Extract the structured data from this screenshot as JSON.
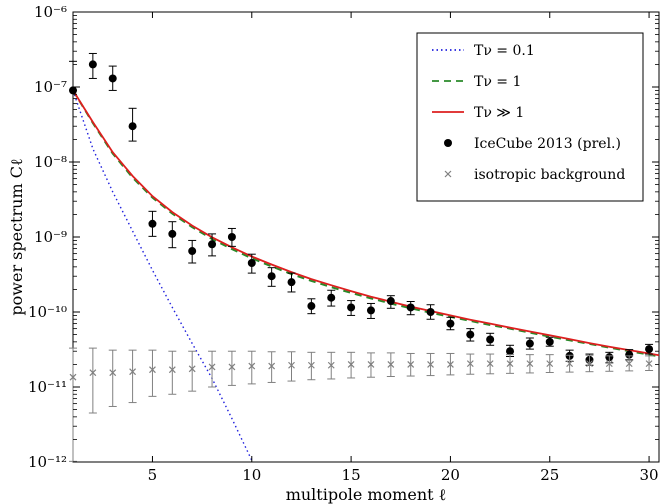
{
  "chart_data": {
    "type": "scatter",
    "xlabel": "multipole moment ℓ",
    "ylabel": "power spectrum Cℓ",
    "xlim": [
      1,
      30.5
    ],
    "ylim": [
      1e-12,
      1e-06
    ],
    "yscale": "log",
    "grid": false,
    "legend_position": "top-right",
    "x_ticks": [
      5,
      10,
      15,
      20,
      25,
      30
    ],
    "y_ticks": [
      {
        "value": 1e-12,
        "label": "10⁻¹²"
      },
      {
        "value": 1e-11,
        "label": "10⁻¹¹"
      },
      {
        "value": 1e-10,
        "label": "10⁻¹⁰"
      },
      {
        "value": 1e-09,
        "label": "10⁻⁹"
      },
      {
        "value": 1e-08,
        "label": "10⁻⁸"
      },
      {
        "value": 1e-07,
        "label": "10⁻⁷"
      },
      {
        "value": 1e-06,
        "label": "10⁻⁶"
      }
    ],
    "series": [
      {
        "name": "Tν = 0.1",
        "kind": "line",
        "style": "dotted",
        "color": "#1f1fdd",
        "x": [
          1,
          2,
          3,
          4,
          5,
          6,
          7,
          8,
          9,
          10
        ],
        "y": [
          9e-08,
          1.5e-08,
          4e-09,
          1.2e-09,
          3.6e-10,
          1.15e-10,
          3.8e-11,
          1.3e-11,
          3.8e-12,
          1.05e-12
        ]
      },
      {
        "name": "Tν = 1",
        "kind": "line",
        "style": "dashed",
        "color": "#2a8a2a",
        "x": [
          1,
          2,
          3,
          4,
          5,
          6,
          7,
          8,
          9,
          10,
          11,
          12,
          13,
          14,
          15,
          16,
          17,
          18,
          19,
          20,
          21,
          22,
          23,
          24,
          25,
          26,
          27,
          28,
          29,
          30,
          30.5
        ],
        "y": [
          9e-08,
          3.3e-08,
          1.3e-08,
          6.2e-09,
          3.35e-09,
          2.05e-09,
          1.35e-09,
          9.4e-10,
          6.9e-10,
          5.2e-10,
          4.05e-10,
          3.2e-10,
          2.6e-10,
          2.15e-10,
          1.8e-10,
          1.52e-10,
          1.3e-10,
          1.12e-10,
          9.8e-11,
          8.6e-11,
          7.6e-11,
          6.7e-11,
          6e-11,
          5.3e-11,
          4.7e-11,
          4.2e-11,
          3.75e-11,
          3.35e-11,
          3e-11,
          2.7e-11,
          2.55e-11
        ]
      },
      {
        "name": "Tν ≫ 1",
        "kind": "line",
        "style": "solid",
        "color": "#dd1f1f",
        "x": [
          1,
          2,
          3,
          4,
          5,
          6,
          7,
          8,
          9,
          10,
          11,
          12,
          13,
          14,
          15,
          16,
          17,
          18,
          19,
          20,
          21,
          22,
          23,
          24,
          25,
          26,
          27,
          28,
          29,
          30,
          30.5
        ],
        "y": [
          9e-08,
          3.4e-08,
          1.35e-08,
          6.5e-09,
          3.5e-09,
          2.15e-09,
          1.42e-09,
          9.9e-10,
          7.3e-10,
          5.5e-10,
          4.3e-10,
          3.4e-10,
          2.75e-10,
          2.28e-10,
          1.9e-10,
          1.6e-10,
          1.37e-10,
          1.18e-10,
          1.03e-10,
          9e-11,
          7.9e-11,
          7e-11,
          6.2e-11,
          5.5e-11,
          4.9e-11,
          4.35e-11,
          3.85e-11,
          3.45e-11,
          3.1e-11,
          2.8e-11,
          2.65e-11
        ]
      },
      {
        "name": "IceCube 2013 (prel.)",
        "kind": "points",
        "marker": "circle",
        "color": "#000000",
        "x": [
          1,
          2,
          3,
          4,
          5,
          6,
          7,
          8,
          9,
          10,
          11,
          12,
          13,
          14,
          15,
          16,
          17,
          18,
          19,
          20,
          21,
          22,
          23,
          24,
          25,
          26,
          27,
          28,
          29,
          30
        ],
        "y": [
          9e-08,
          2e-07,
          1.3e-07,
          3e-08,
          1.5e-09,
          1.1e-09,
          6.5e-10,
          8e-10,
          1e-09,
          4.5e-10,
          3e-10,
          2.5e-10,
          1.2e-10,
          1.55e-10,
          1.15e-10,
          1.05e-10,
          1.4e-10,
          1.15e-10,
          1e-10,
          7e-11,
          5e-11,
          4.3e-11,
          3e-11,
          3.8e-11,
          4e-11,
          2.6e-11,
          2.3e-11,
          2.5e-11,
          2.7e-11,
          3.2e-11
        ],
        "y_low": [
          1e-08,
          1.3e-07,
          9e-08,
          1.9e-08,
          1.02e-09,
          7.2e-10,
          4.5e-10,
          5.6e-10,
          7.5e-10,
          3.3e-10,
          2.2e-10,
          1.85e-10,
          9.5e-11,
          1.2e-10,
          9e-11,
          8.2e-11,
          1.12e-10,
          9.2e-11,
          8e-11,
          5.8e-11,
          4.1e-11,
          3.6e-11,
          2.55e-11,
          3.2e-11,
          3.5e-11,
          2.2e-11,
          1.95e-11,
          2.1e-11,
          2.3e-11,
          2.75e-11
        ],
        "y_high": [
          2.2e-07,
          2.8e-07,
          1.9e-07,
          5.2e-08,
          2.2e-09,
          1.6e-09,
          9e-10,
          1.1e-09,
          1.3e-09,
          5.9e-10,
          3.9e-10,
          3.3e-10,
          1.5e-10,
          1.95e-10,
          1.42e-10,
          1.3e-10,
          1.65e-10,
          1.38e-10,
          1.25e-10,
          8.5e-11,
          6e-11,
          5.2e-11,
          3.6e-11,
          4.5e-11,
          4.6e-11,
          3.1e-11,
          2.75e-11,
          2.9e-11,
          3.15e-11,
          3.7e-11
        ]
      },
      {
        "name": "isotropic background",
        "kind": "points",
        "marker": "x",
        "color": "#808080",
        "x": [
          1,
          2,
          3,
          4,
          5,
          6,
          7,
          8,
          9,
          10,
          11,
          12,
          13,
          14,
          15,
          16,
          17,
          18,
          19,
          20,
          21,
          22,
          23,
          24,
          25,
          26,
          27,
          28,
          29,
          30
        ],
        "y": [
          1.35e-11,
          1.55e-11,
          1.55e-11,
          1.6e-11,
          1.7e-11,
          1.7e-11,
          1.75e-11,
          1.85e-11,
          1.85e-11,
          1.9e-11,
          1.9e-11,
          1.95e-11,
          1.95e-11,
          1.95e-11,
          2e-11,
          2e-11,
          2e-11,
          2e-11,
          2e-11,
          2e-11,
          2.05e-11,
          2.05e-11,
          2.05e-11,
          2.05e-11,
          2.05e-11,
          2.05e-11,
          2.05e-11,
          2.05e-11,
          2.05e-11,
          2.05e-11
        ],
        "y_low": [
          1.02e-12,
          4.5e-12,
          5.5e-12,
          6.2e-12,
          7.5e-12,
          8e-12,
          8.8e-12,
          1e-11,
          1.05e-11,
          1.1e-11,
          1.15e-11,
          1.2e-11,
          1.25e-11,
          1.28e-11,
          1.32e-11,
          1.35e-11,
          1.38e-11,
          1.4e-11,
          1.42e-11,
          1.45e-11,
          1.48e-11,
          1.5e-11,
          1.52e-11,
          1.54e-11,
          1.56e-11,
          1.58e-11,
          1.6e-11,
          1.62e-11,
          1.64e-11,
          1.66e-11
        ],
        "y_high": [
          3.3e-11,
          3.3e-11,
          3.1e-11,
          3.1e-11,
          3.1e-11,
          3e-11,
          3e-11,
          3e-11,
          3e-11,
          3e-11,
          2.95e-11,
          2.95e-11,
          2.9e-11,
          2.9e-11,
          2.9e-11,
          2.85e-11,
          2.85e-11,
          2.8e-11,
          2.8e-11,
          2.8e-11,
          2.75e-11,
          2.75e-11,
          2.7e-11,
          2.7e-11,
          2.7e-11,
          2.65e-11,
          2.65e-11,
          2.6e-11,
          2.6e-11,
          2.6e-11
        ]
      }
    ]
  }
}
